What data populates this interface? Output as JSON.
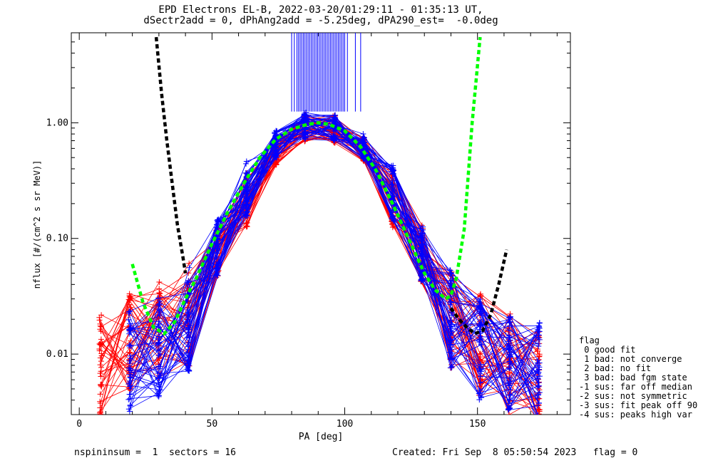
{
  "header": {
    "title_line1": "EPD Electrons EL-B, 2022-03-20/01:29:11 - 01:35:13 UT,",
    "title_line2": "dSectr2add = 0, dPhAng2add = -5.25deg, dPA290_est=  -0.0deg"
  },
  "footer": {
    "left": "nspininsum =  1  sectors = 16",
    "right": "Created: Fri Sep  8 05:50:54 2023   flag = 0"
  },
  "legend": {
    "items": [
      "flag",
      " 0 good fit",
      " 1 bad: not converge",
      " 2 bad: no fit",
      " 3 bad: bad fgm state",
      "-1 sus: far off median",
      "-2 sus: not symmetric",
      "-3 sus: fit peak off 90",
      "-4 sus: peaks high var"
    ]
  },
  "colors": {
    "red": "#ff0000",
    "blue": "#0000ff",
    "green": "#00ff00",
    "black": "#000000"
  },
  "chart_data": {
    "type": "line",
    "xlabel": "PA [deg]",
    "ylabel": "nflux [#/(cm^2 s sr MeV)]",
    "xlim": [
      -3,
      185
    ],
    "ylim": [
      0.003,
      6.0
    ],
    "yscale": "log",
    "xticks": [
      0,
      50,
      100,
      150
    ],
    "yticks": [
      0.01,
      0.1,
      1.0
    ],
    "ytick_labels": [
      "0.01",
      "0.10",
      "1.00"
    ],
    "pa_bins": [
      8,
      19,
      30,
      41,
      52,
      63,
      74,
      85,
      96,
      107,
      118,
      129,
      140,
      151,
      162,
      173
    ],
    "series": [
      {
        "color": "red",
        "typical_profile": [
          0.008,
          0.012,
          0.015,
          0.022,
          0.07,
          0.22,
          0.55,
          0.9,
          0.88,
          0.58,
          0.22,
          0.075,
          0.02,
          0.012,
          0.008,
          0.006
        ],
        "count": 40
      },
      {
        "color": "blue",
        "typical_profile": [
          null,
          0.009,
          0.012,
          0.02,
          0.085,
          0.27,
          0.65,
          0.95,
          0.92,
          0.62,
          0.24,
          0.075,
          0.02,
          0.011,
          0.009,
          0.007
        ],
        "count": 45
      },
      {
        "color": "green",
        "style": "dashed",
        "x": [
          20,
          24,
          28,
          32,
          36,
          40,
          44,
          50,
          56,
          62,
          68,
          74,
          80,
          86,
          90,
          94,
          100,
          106,
          112,
          118,
          124,
          130,
          134,
          138,
          140,
          142,
          145,
          148,
          151
        ],
        "y": [
          0.06,
          0.028,
          0.017,
          0.015,
          0.019,
          0.03,
          0.045,
          0.09,
          0.17,
          0.3,
          0.5,
          0.72,
          0.88,
          0.97,
          1.0,
          0.97,
          0.85,
          0.62,
          0.38,
          0.2,
          0.1,
          0.05,
          0.036,
          0.03,
          0.032,
          0.045,
          0.12,
          1.0,
          5.5
        ]
      },
      {
        "color": "black",
        "style": "dashed",
        "x": [
          29,
          31,
          33,
          35,
          37,
          39,
          40
        ],
        "y": [
          5.5,
          1.8,
          0.7,
          0.3,
          0.13,
          0.07,
          0.05
        ]
      },
      {
        "color": "black",
        "style": "dashed",
        "x": [
          140,
          143,
          146,
          149,
          152,
          155,
          158,
          161
        ],
        "y": [
          0.025,
          0.02,
          0.017,
          0.015,
          0.016,
          0.022,
          0.04,
          0.08
        ]
      }
    ]
  }
}
